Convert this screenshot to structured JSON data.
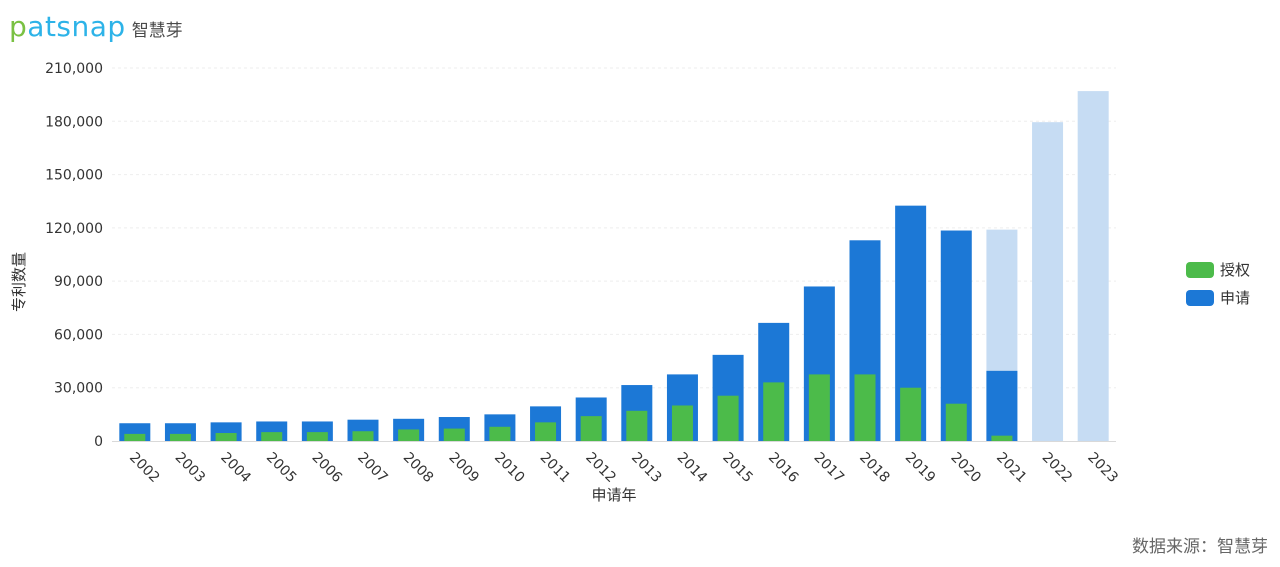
{
  "brand": {
    "logo_text_1": "p",
    "logo_text_2": "atsnap",
    "logo_cn": "智慧芽"
  },
  "source": "数据来源：智慧芽",
  "colors": {
    "grant": "#4cbb4a",
    "application": "#1c78d6",
    "application_light": "#c6dcf3"
  },
  "chart_data": {
    "type": "bar",
    "categories": [
      "2002",
      "2003",
      "2004",
      "2005",
      "2006",
      "2007",
      "2008",
      "2009",
      "2010",
      "2011",
      "2012",
      "2013",
      "2014",
      "2015",
      "2016",
      "2017",
      "2018",
      "2019",
      "2020",
      "2021",
      "2022",
      "2023"
    ],
    "series": [
      {
        "name": "申请",
        "values": [
          10000,
          10000,
          10500,
          11000,
          11000,
          12000,
          12500,
          13500,
          15000,
          19500,
          24500,
          31500,
          37500,
          48500,
          66500,
          87000,
          113000,
          132500,
          118500,
          119000,
          179500,
          197000
        ]
      },
      {
        "name": "授权",
        "values": [
          4000,
          4000,
          4500,
          5000,
          5000,
          5500,
          6500,
          7000,
          8000,
          10500,
          14000,
          17000,
          20000,
          25500,
          33000,
          37500,
          37500,
          30000,
          21000,
          3000,
          0,
          0
        ]
      }
    ],
    "partial_years": {
      "2021": {
        "application_light_total": 119000,
        "application_solid": 39500
      },
      "2022": {
        "application_light_total": 179500
      },
      "2023": {
        "application_light_total": 197000
      }
    },
    "xlabel": "申请年",
    "ylabel": "专利数量",
    "ylim": [
      0,
      210000
    ],
    "yticks": [
      "0",
      "30,000",
      "60,000",
      "90,000",
      "120,000",
      "150,000",
      "180,000",
      "210,000"
    ],
    "legend": [
      {
        "name": "授权"
      },
      {
        "name": "申请"
      }
    ],
    "legend_position": "right",
    "grid": true
  }
}
